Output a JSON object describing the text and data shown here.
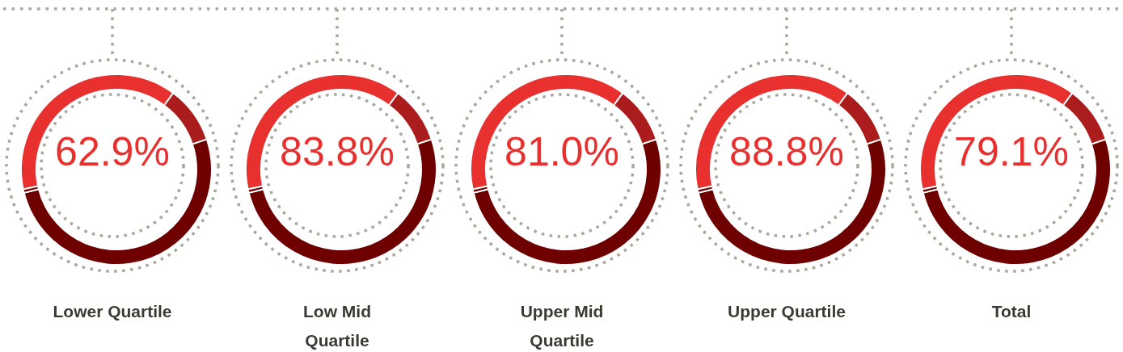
{
  "chart_data": [
    {
      "type": "donut",
      "title": "Lower Quartile",
      "annotations": [
        "62.9%"
      ],
      "categories": [
        null,
        null,
        null,
        null
      ],
      "values": [
        38.5,
        9.7,
        51.2,
        0.6
      ],
      "colors": [
        "#e8302f",
        "#ab1d1d",
        "#6e0000",
        "#6e0000"
      ],
      "legend": false
    },
    {
      "type": "donut",
      "title": "Low Mid Quartile",
      "annotations": [
        "83.8%"
      ],
      "categories": [
        null,
        null,
        null,
        null
      ],
      "values": [
        38.5,
        9.7,
        51.2,
        0.6
      ],
      "colors": [
        "#e8302f",
        "#ab1d1d",
        "#6e0000",
        "#6e0000"
      ],
      "legend": false
    },
    {
      "type": "donut",
      "title": "Upper Mid Quartile",
      "annotations": [
        "81.0%"
      ],
      "categories": [
        null,
        null,
        null,
        null
      ],
      "values": [
        38.5,
        9.7,
        51.2,
        0.6
      ],
      "colors": [
        "#e8302f",
        "#ab1d1d",
        "#6e0000",
        "#6e0000"
      ],
      "legend": false
    },
    {
      "type": "donut",
      "title": "Upper Quartile",
      "annotations": [
        "88.8%"
      ],
      "categories": [
        null,
        null,
        null,
        null
      ],
      "values": [
        38.5,
        9.7,
        51.2,
        0.6
      ],
      "colors": [
        "#e8302f",
        "#ab1d1d",
        "#6e0000",
        "#6e0000"
      ],
      "legend": false
    },
    {
      "type": "donut",
      "title": "Total",
      "annotations": [
        "79.1%"
      ],
      "categories": [
        null,
        null,
        null,
        null
      ],
      "values": [
        38.5,
        9.7,
        51.2,
        0.6
      ],
      "colors": [
        "#e8302f",
        "#ab1d1d",
        "#6e0000",
        "#6e0000"
      ],
      "legend": false
    }
  ]
}
